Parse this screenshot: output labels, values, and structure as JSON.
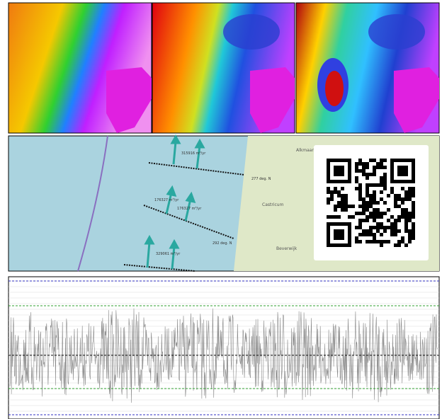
{
  "map": {
    "flow_labels": [
      "315916 m³/yr",
      "277 deg. N",
      "176327 m³/yr",
      "176327 m³/yr",
      "292 deg. N",
      "329061 m³/yr"
    ],
    "places": [
      "Alkmaar",
      "Castricum",
      "Beverwijk"
    ]
  }
}
